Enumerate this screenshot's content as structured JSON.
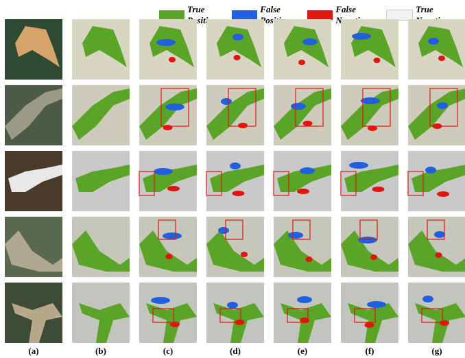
{
  "legend": [
    {
      "label": "True Positive",
      "color": "#5aa528"
    },
    {
      "label": "False Positive",
      "color": "#1f5fe0"
    },
    {
      "label": "False Negative",
      "color": "#e0160f"
    },
    {
      "label": "True Negative",
      "color": "#f2f2f2"
    }
  ],
  "columns": [
    "(a)",
    "(b)",
    "(c)",
    "(d)",
    "(e)",
    "(f)",
    "(g)"
  ]
}
